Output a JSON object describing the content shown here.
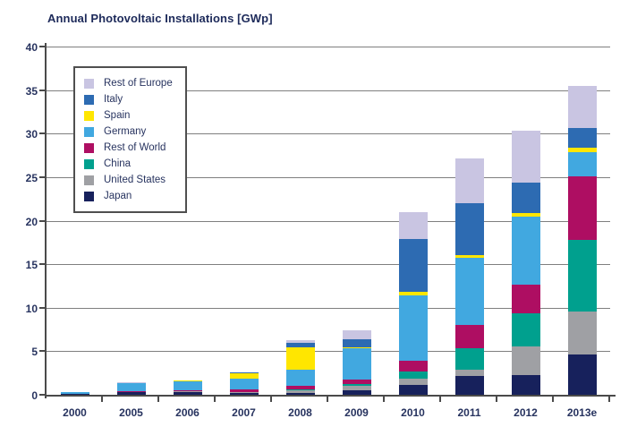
{
  "chart_data": {
    "type": "bar",
    "stacked": true,
    "title": "Annual Photovoltaic Installations [GWp]",
    "xlabel": "",
    "ylabel": "",
    "ylim": [
      0,
      40
    ],
    "yticks": [
      0,
      5,
      10,
      15,
      20,
      25,
      30,
      35,
      40
    ],
    "grid": true,
    "legend_position": "upper-left",
    "categories": [
      "2000",
      "2005",
      "2006",
      "2007",
      "2008",
      "2009",
      "2010",
      "2011",
      "2012",
      "2013e"
    ],
    "series": [
      {
        "name": "Japan",
        "color": "#17215c",
        "values": [
          0.1,
          0.3,
          0.3,
          0.2,
          0.25,
          0.55,
          1.1,
          2.2,
          2.3,
          4.6
        ]
      },
      {
        "name": "United States",
        "color": "#9fa0a4",
        "values": [
          0.03,
          0.05,
          0.1,
          0.1,
          0.3,
          0.5,
          0.75,
          0.7,
          3.3,
          4.95
        ]
      },
      {
        "name": "China",
        "color": "#00a08e",
        "values": [
          0.0,
          0.0,
          0.0,
          0.0,
          0.05,
          0.15,
          0.8,
          2.4,
          3.8,
          8.25
        ]
      },
      {
        "name": "Rest of World",
        "color": "#ae0e62",
        "values": [
          0.02,
          0.05,
          0.15,
          0.3,
          0.45,
          0.6,
          1.3,
          2.7,
          3.2,
          7.3
        ]
      },
      {
        "name": "Germany",
        "color": "#41a8e0",
        "values": [
          0.2,
          0.95,
          1.0,
          1.3,
          1.85,
          3.6,
          7.45,
          7.7,
          7.9,
          2.8
        ]
      },
      {
        "name": "Spain",
        "color": "#ffe600",
        "values": [
          0.0,
          0.0,
          0.05,
          0.55,
          2.6,
          0.1,
          0.45,
          0.35,
          0.4,
          0.5
        ]
      },
      {
        "name": "Italy",
        "color": "#2d6bb2",
        "values": [
          0.0,
          0.0,
          0.0,
          0.05,
          0.45,
          0.9,
          6.0,
          5.95,
          3.5,
          2.2
        ]
      },
      {
        "name": "Rest of Europe",
        "color": "#c9c5e2",
        "values": [
          0.0,
          0.05,
          0.0,
          0.0,
          0.35,
          1.0,
          3.15,
          5.1,
          5.9,
          4.9
        ]
      }
    ],
    "totals": [
      0.35,
      1.4,
      1.6,
      2.5,
      6.3,
      7.4,
      21.0,
      27.1,
      30.3,
      35.5
    ],
    "legend_top_to_bottom": [
      "Rest of Europe",
      "Italy",
      "Spain",
      "Germany",
      "Rest of World",
      "China",
      "United States",
      "Japan"
    ],
    "palette": {
      "background": "#ffffff",
      "grid": "#7f7f7f",
      "axis": "#4a4a4a",
      "text": "#27335f",
      "title": "#1d2a5a",
      "legend_border": "#4f4f4f"
    }
  }
}
